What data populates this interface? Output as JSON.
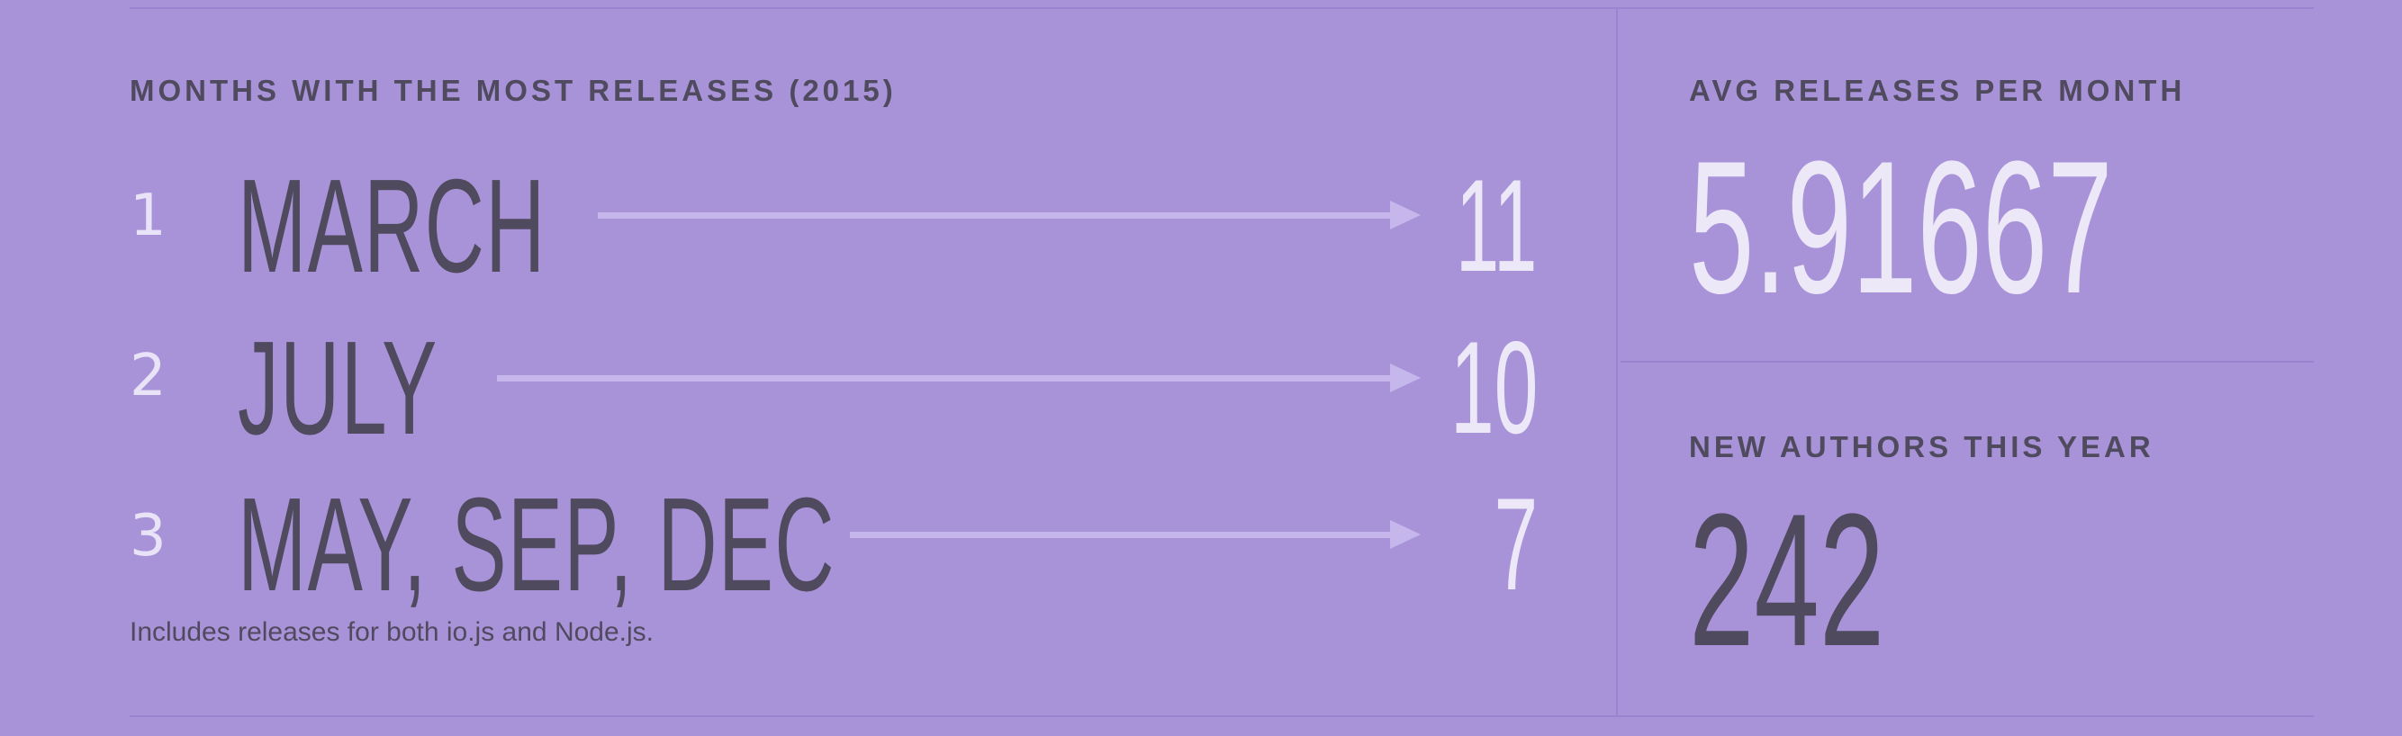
{
  "months_panel": {
    "heading": "MONTHS WITH THE MOST RELEASES (2015)",
    "rows": [
      {
        "rank": "1",
        "months": "MARCH",
        "count": "11"
      },
      {
        "rank": "2",
        "months": "JULY",
        "count": "10"
      },
      {
        "rank": "3",
        "months": "MAY, SEP, DEC",
        "count": "7"
      }
    ],
    "footnote": "Includes releases for both io.js and Node.js."
  },
  "avg_panel": {
    "heading": "AVG RELEASES PER MONTH",
    "value": "5.91667"
  },
  "authors_panel": {
    "heading": "NEW AUTHORS THIS YEAR",
    "value": "242"
  },
  "colors": {
    "background": "#a893d9",
    "dark_text": "#4f4a5e",
    "light_text": "#ece8f8",
    "arrow": "#c5b6ec"
  },
  "icons": [
    "arrow-right-icon"
  ]
}
